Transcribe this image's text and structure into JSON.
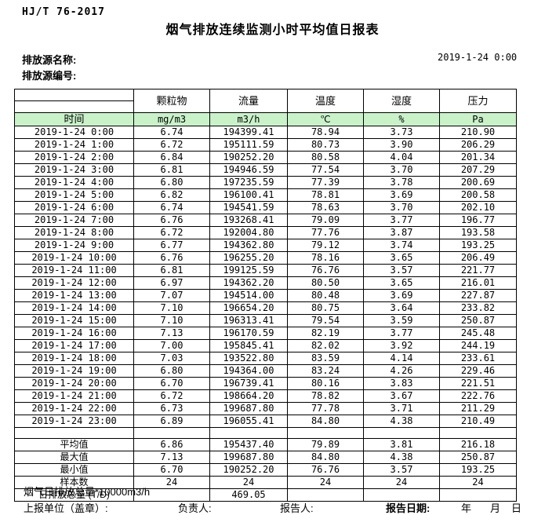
{
  "header": {
    "standard_no": "HJ/T 76-2017",
    "title": "烟气排放连续监测小时平均值日报表",
    "source_name_label": "排放源名称:",
    "source_code_label": "排放源编号:",
    "report_datetime": "2019-1-24 0:00"
  },
  "table": {
    "time_header": "时间",
    "columns": [
      "颗粒物",
      "流量",
      "温度",
      "湿度",
      "压力"
    ],
    "units": [
      "mg/m3",
      "m3/h",
      "℃",
      "%",
      "Pa"
    ],
    "rows": [
      {
        "time": "2019-1-24 0:00",
        "values": [
          "6.74",
          "194399.41",
          "78.94",
          "3.73",
          "210.90"
        ]
      },
      {
        "time": "2019-1-24 1:00",
        "values": [
          "6.72",
          "195111.59",
          "80.73",
          "3.90",
          "206.29"
        ]
      },
      {
        "time": "2019-1-24 2:00",
        "values": [
          "6.84",
          "190252.20",
          "80.58",
          "4.04",
          "201.34"
        ]
      },
      {
        "time": "2019-1-24 3:00",
        "values": [
          "6.81",
          "194946.59",
          "77.54",
          "3.70",
          "207.29"
        ]
      },
      {
        "time": "2019-1-24 4:00",
        "values": [
          "6.80",
          "197235.59",
          "77.39",
          "3.78",
          "200.69"
        ]
      },
      {
        "time": "2019-1-24 5:00",
        "values": [
          "6.82",
          "196100.41",
          "78.81",
          "3.69",
          "200.58"
        ]
      },
      {
        "time": "2019-1-24 6:00",
        "values": [
          "6.74",
          "194541.59",
          "78.63",
          "3.70",
          "202.10"
        ]
      },
      {
        "time": "2019-1-24 7:00",
        "values": [
          "6.76",
          "193268.41",
          "79.09",
          "3.77",
          "196.77"
        ]
      },
      {
        "time": "2019-1-24 8:00",
        "values": [
          "6.72",
          "192004.80",
          "77.76",
          "3.87",
          "193.58"
        ]
      },
      {
        "time": "2019-1-24 9:00",
        "values": [
          "6.77",
          "194362.80",
          "79.12",
          "3.74",
          "193.25"
        ]
      },
      {
        "time": "2019-1-24 10:00",
        "values": [
          "6.76",
          "196255.20",
          "78.16",
          "3.65",
          "206.49"
        ]
      },
      {
        "time": "2019-1-24 11:00",
        "values": [
          "6.81",
          "199125.59",
          "76.76",
          "3.57",
          "221.77"
        ]
      },
      {
        "time": "2019-1-24 12:00",
        "values": [
          "6.97",
          "194362.20",
          "80.50",
          "3.65",
          "216.01"
        ]
      },
      {
        "time": "2019-1-24 13:00",
        "values": [
          "7.07",
          "194514.00",
          "80.48",
          "3.69",
          "227.87"
        ]
      },
      {
        "time": "2019-1-24 14:00",
        "values": [
          "7.10",
          "196654.20",
          "80.75",
          "3.64",
          "233.82"
        ]
      },
      {
        "time": "2019-1-24 15:00",
        "values": [
          "7.10",
          "196313.41",
          "79.54",
          "3.59",
          "250.87"
        ]
      },
      {
        "time": "2019-1-24 16:00",
        "values": [
          "7.13",
          "196170.59",
          "82.19",
          "3.77",
          "245.48"
        ]
      },
      {
        "time": "2019-1-24 17:00",
        "values": [
          "7.00",
          "195845.41",
          "82.02",
          "3.92",
          "244.19"
        ]
      },
      {
        "time": "2019-1-24 18:00",
        "values": [
          "7.03",
          "193522.80",
          "83.59",
          "4.14",
          "233.61"
        ]
      },
      {
        "time": "2019-1-24 19:00",
        "values": [
          "6.80",
          "194364.00",
          "83.24",
          "4.26",
          "229.46"
        ]
      },
      {
        "time": "2019-1-24 20:00",
        "values": [
          "6.70",
          "196739.41",
          "80.16",
          "3.83",
          "221.51"
        ]
      },
      {
        "time": "2019-1-24 21:00",
        "values": [
          "6.72",
          "198664.20",
          "78.82",
          "3.67",
          "222.76"
        ]
      },
      {
        "time": "2019-1-24 22:00",
        "values": [
          "6.73",
          "199687.80",
          "77.78",
          "3.71",
          "211.29"
        ]
      },
      {
        "time": "2019-1-24 23:00",
        "values": [
          "6.89",
          "196055.41",
          "84.80",
          "4.38",
          "210.49"
        ]
      }
    ],
    "summary": [
      {
        "label": "平均值",
        "values": [
          "6.86",
          "195437.40",
          "79.89",
          "3.81",
          "216.18"
        ]
      },
      {
        "label": "最大值",
        "values": [
          "7.13",
          "199687.80",
          "84.80",
          "4.38",
          "250.87"
        ]
      },
      {
        "label": "最小值",
        "values": [
          "6.70",
          "190252.20",
          "76.76",
          "3.57",
          "193.25"
        ]
      },
      {
        "label": "样本数",
        "values": [
          "24",
          "24",
          "24",
          "24",
          "24"
        ]
      },
      {
        "label": "日排放总量 (T/D)",
        "values": [
          "",
          "469.05",
          "",
          "",
          ""
        ]
      }
    ]
  },
  "footer": {
    "note": "烟气日排放总量*10000m3/h",
    "report_unit_label": "上报单位（盖章）:",
    "responsible_label": "负责人:",
    "reporter_label": "报告人:",
    "report_date_label": "报告日期:",
    "year_label": "年",
    "month_label": "月",
    "day_label": "日"
  },
  "colors": {
    "unit_row_bg": "#c9f2c9",
    "border": "#000000"
  }
}
